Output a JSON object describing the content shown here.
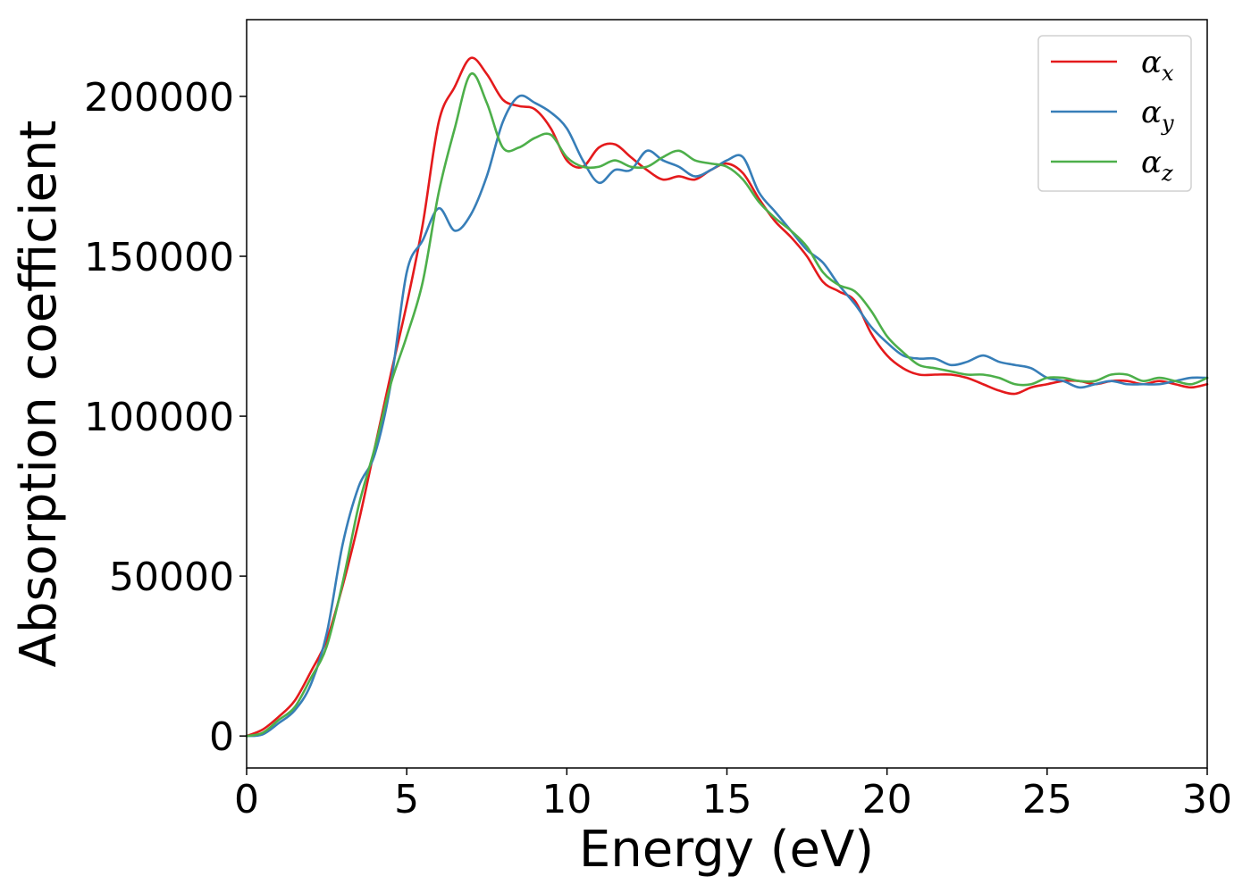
{
  "chart_data": {
    "type": "line",
    "title": "",
    "xlabel": "Energy (eV)",
    "ylabel": "Absorption coefficient",
    "xlim": [
      0,
      30
    ],
    "ylim": [
      -10000,
      224000
    ],
    "xticks": [
      0,
      5,
      10,
      15,
      20,
      25,
      30
    ],
    "xtick_labels": [
      "0",
      "5",
      "10",
      "15",
      "20",
      "25",
      "30"
    ],
    "yticks": [
      0,
      50000,
      100000,
      150000,
      200000
    ],
    "ytick_labels": [
      "0",
      "50000",
      "100000",
      "150000",
      "200000"
    ],
    "grid": false,
    "legend_position": "top-right",
    "series": [
      {
        "name": "αx",
        "symbol": "α",
        "subscript": "x",
        "color": "#e41a1c",
        "x": [
          0,
          0.5,
          1,
          1.5,
          2,
          2.5,
          3,
          3.5,
          4,
          4.5,
          5,
          5.5,
          6,
          6.5,
          7,
          7.5,
          8,
          8.5,
          9,
          9.5,
          10,
          10.5,
          11,
          11.5,
          12,
          12.5,
          13,
          13.5,
          14,
          14.5,
          15,
          15.5,
          16,
          16.5,
          17,
          17.5,
          18,
          18.5,
          19,
          19.5,
          20,
          20.5,
          21,
          21.5,
          22,
          22.5,
          23,
          23.5,
          24,
          24.5,
          25,
          25.5,
          26,
          26.5,
          27,
          27.5,
          28,
          28.5,
          29,
          29.5,
          30
        ],
        "y": [
          0,
          2000,
          6000,
          11000,
          20000,
          30000,
          47000,
          67000,
          90000,
          113000,
          135000,
          160000,
          192000,
          203000,
          212000,
          207000,
          199000,
          197000,
          196000,
          190000,
          180000,
          178000,
          184000,
          185000,
          181000,
          177000,
          174000,
          175000,
          174000,
          177000,
          179000,
          176000,
          168000,
          161000,
          156000,
          150000,
          142000,
          139000,
          136000,
          126000,
          119000,
          115000,
          113000,
          113000,
          113000,
          112000,
          110000,
          108000,
          107000,
          109000,
          110000,
          111000,
          111000,
          110000,
          111000,
          111000,
          110000,
          111000,
          110000,
          109000,
          110000
        ]
      },
      {
        "name": "αy",
        "symbol": "α",
        "subscript": "y",
        "color": "#377eb8",
        "x": [
          0,
          0.5,
          1,
          1.5,
          2,
          2.5,
          3,
          3.5,
          4,
          4.5,
          5,
          5.5,
          6,
          6.5,
          7,
          7.5,
          8,
          8.5,
          9,
          9.5,
          10,
          10.5,
          11,
          11.5,
          12,
          12.5,
          13,
          13.5,
          14,
          14.5,
          15,
          15.5,
          16,
          16.5,
          17,
          17.5,
          18,
          18.5,
          19,
          19.5,
          20,
          20.5,
          21,
          21.5,
          22,
          22.5,
          23,
          23.5,
          24,
          24.5,
          25,
          25.5,
          26,
          26.5,
          27,
          27.5,
          28,
          28.5,
          29,
          29.5,
          30
        ],
        "y": [
          0,
          500,
          4000,
          8000,
          16000,
          32000,
          60000,
          78000,
          88000,
          110000,
          145000,
          155000,
          165000,
          158000,
          163000,
          175000,
          192000,
          200000,
          198000,
          195000,
          190000,
          180000,
          173000,
          177000,
          177000,
          183000,
          180000,
          178000,
          175000,
          177000,
          180000,
          181000,
          170000,
          164000,
          158000,
          152000,
          148000,
          141000,
          135000,
          128000,
          123000,
          119000,
          118000,
          118000,
          116000,
          117000,
          119000,
          117000,
          116000,
          115000,
          112000,
          111000,
          109000,
          110000,
          111000,
          110000,
          110000,
          110000,
          111000,
          112000,
          112000
        ]
      },
      {
        "name": "αz",
        "symbol": "α",
        "subscript": "z",
        "color": "#4daf4a",
        "x": [
          0,
          0.5,
          1,
          1.5,
          2,
          2.5,
          3,
          3.5,
          4,
          4.5,
          5,
          5.5,
          6,
          6.5,
          7,
          7.5,
          8,
          8.5,
          9,
          9.5,
          10,
          10.5,
          11,
          11.5,
          12,
          12.5,
          13,
          13.5,
          14,
          14.5,
          15,
          15.5,
          16,
          16.5,
          17,
          17.5,
          18,
          18.5,
          19,
          19.5,
          20,
          20.5,
          21,
          21.5,
          22,
          22.5,
          23,
          23.5,
          24,
          24.5,
          25,
          25.5,
          26,
          26.5,
          27,
          27.5,
          28,
          28.5,
          29,
          29.5,
          30
        ],
        "y": [
          0,
          1000,
          5000,
          9000,
          18000,
          28000,
          48000,
          72000,
          90000,
          110000,
          125000,
          142000,
          170000,
          190000,
          207000,
          198000,
          184000,
          184000,
          187000,
          188000,
          181000,
          178000,
          178000,
          180000,
          178000,
          178000,
          181000,
          183000,
          180000,
          179000,
          178000,
          174000,
          167000,
          162000,
          158000,
          153000,
          145000,
          141000,
          139000,
          133000,
          125000,
          120000,
          116000,
          115000,
          114000,
          113000,
          113000,
          112000,
          110000,
          110000,
          112000,
          112000,
          111000,
          111000,
          113000,
          113000,
          111000,
          112000,
          111000,
          110000,
          112000
        ]
      }
    ]
  }
}
